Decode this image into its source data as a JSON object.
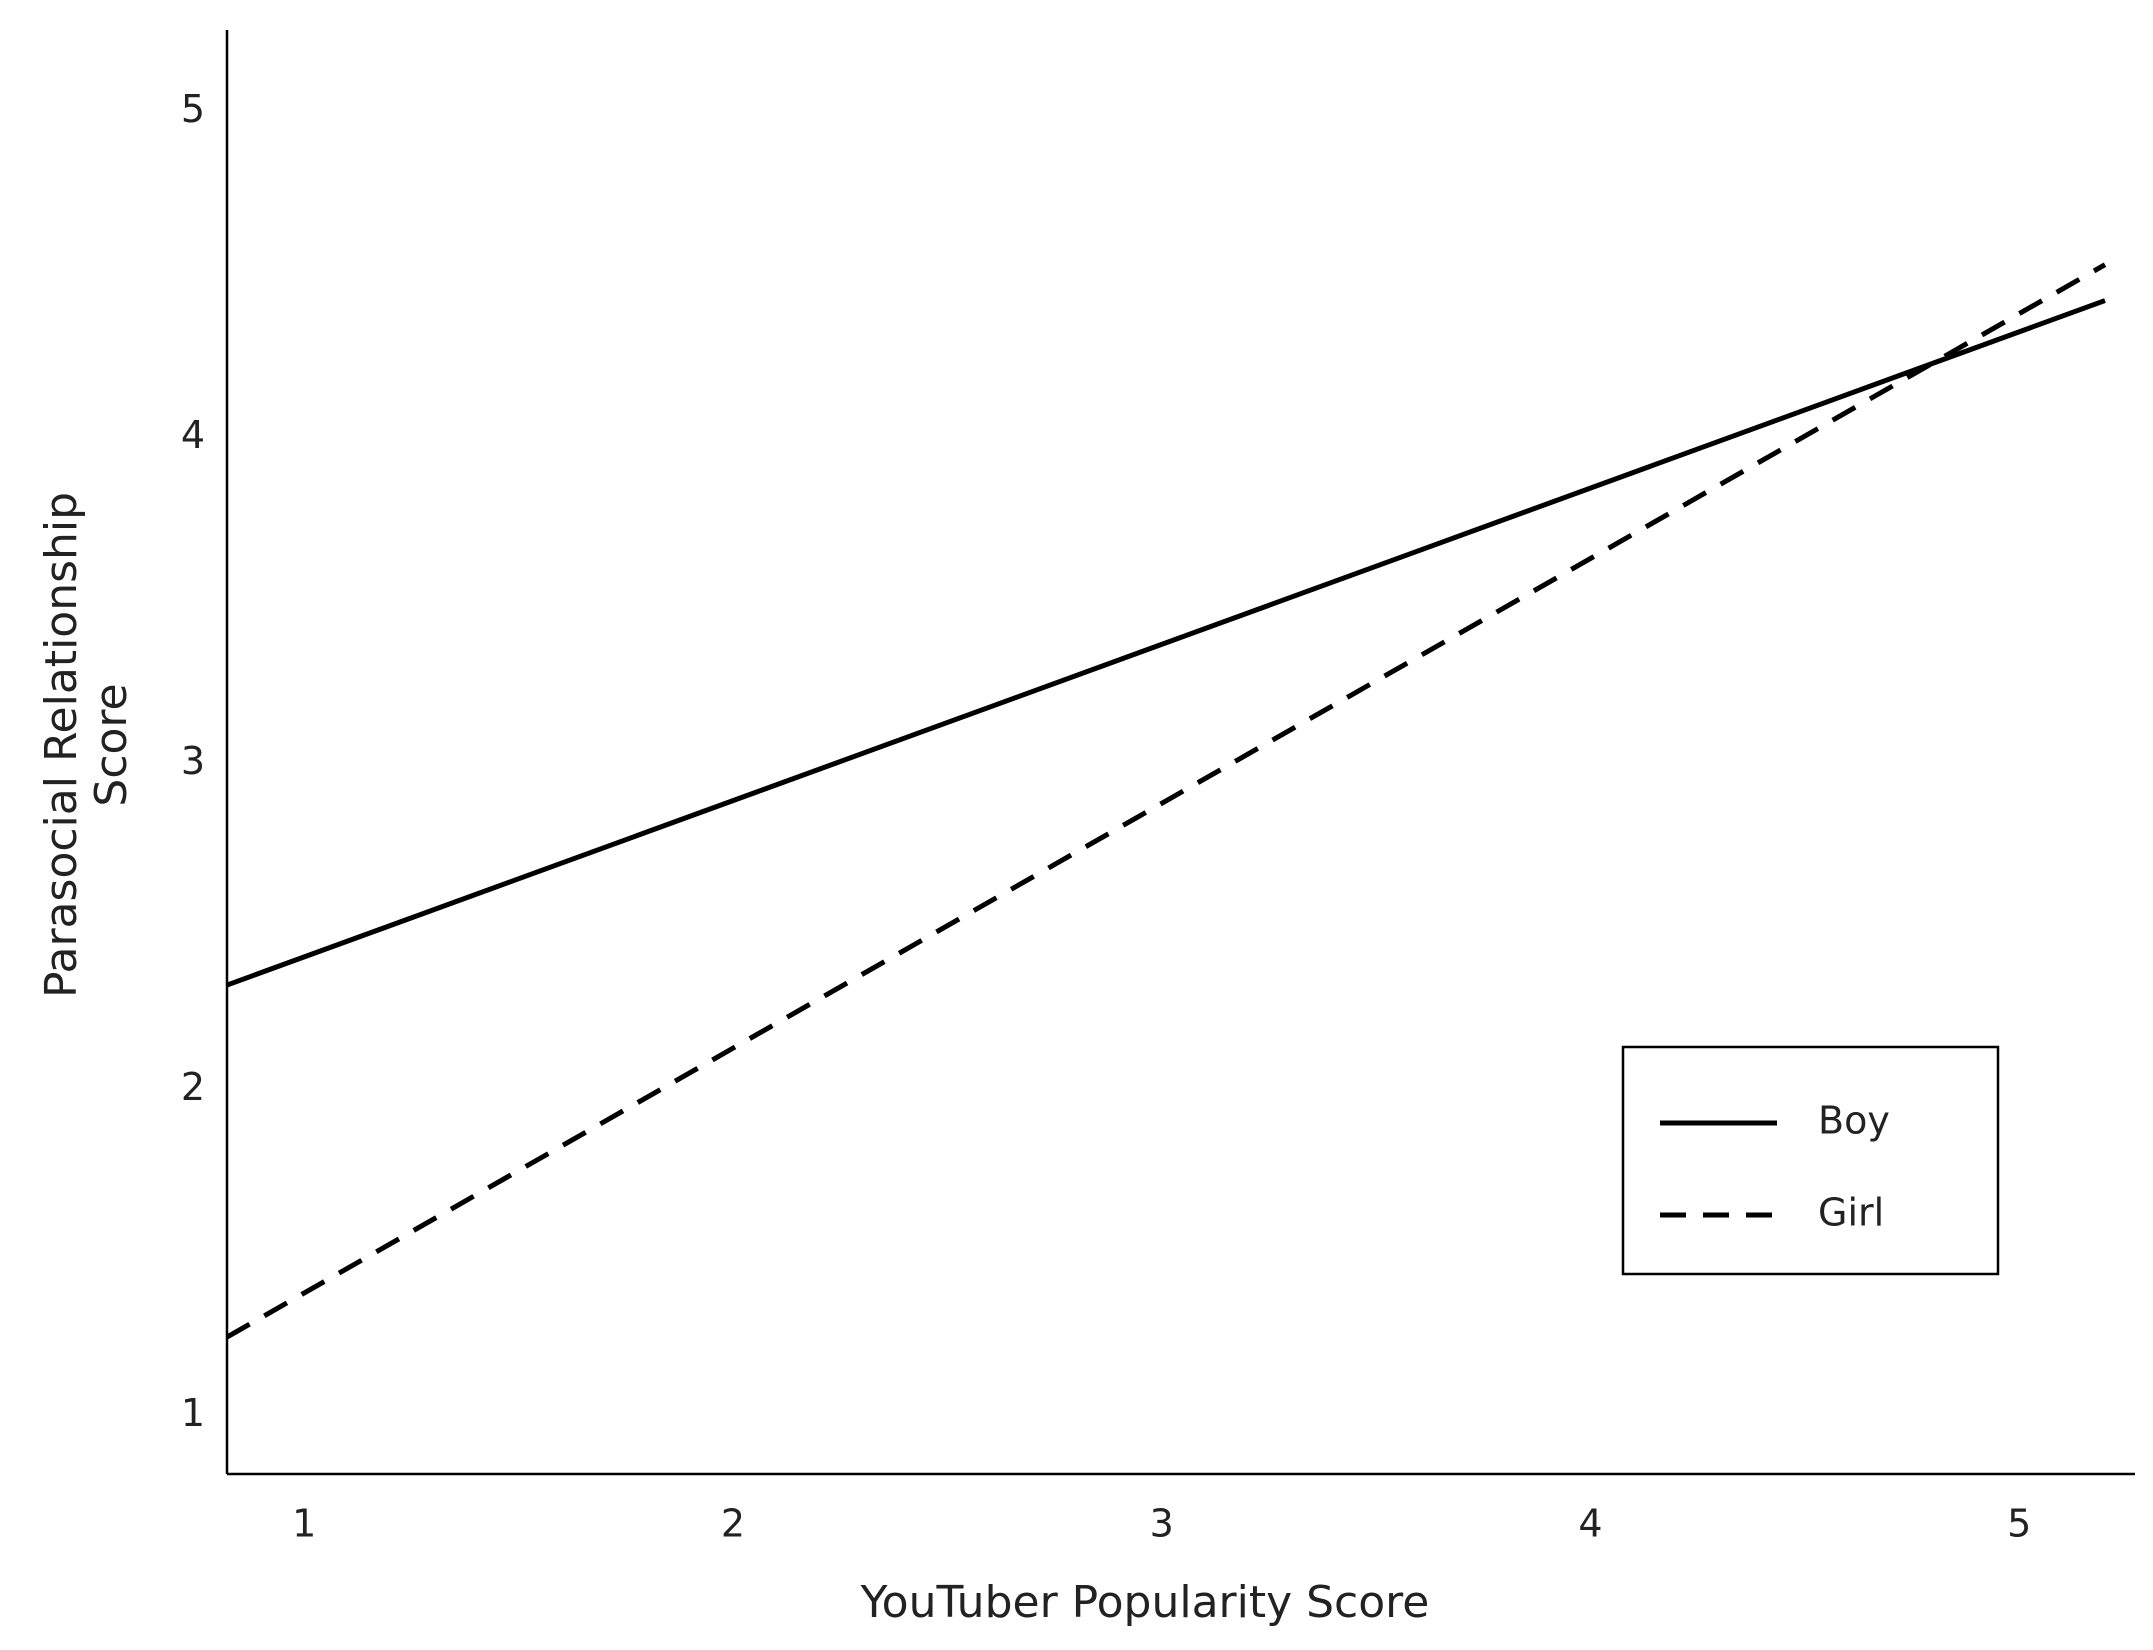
{
  "chart_data": {
    "type": "line",
    "xlabel": "YouTuber Popularity Score",
    "ylabel": [
      "Parasocial Relationship",
      "Score"
    ],
    "x": [
      0.82,
      5.2
    ],
    "series": [
      {
        "name": "Boy",
        "color": "#000000",
        "style": "solid",
        "values": [
          2.32,
          4.42
        ]
      },
      {
        "name": "Girl",
        "color": "#000000",
        "style": "dashed",
        "values": [
          1.24,
          4.53
        ]
      }
    ],
    "xlim": [
      0.82,
      5.27
    ],
    "xticks": [
      1,
      2,
      3,
      4,
      5
    ],
    "ylim": [
      0.82,
      5.25
    ],
    "yticks": [
      1,
      2,
      3,
      4,
      5
    ],
    "grid": false,
    "legend": "lower right"
  }
}
